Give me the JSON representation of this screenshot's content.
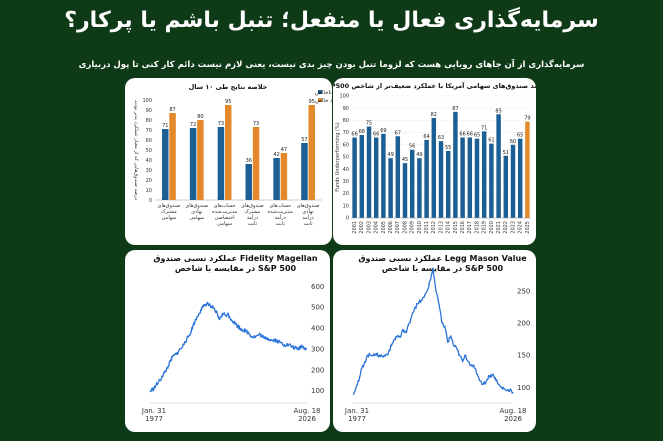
{
  "page": {
    "title": "سرمایه‌گذاری فعال یا منفعل؛ تنبل باشم یا پرکار؟",
    "subtitle": "سرمایه‌گذاری از آن جاهای رویایی هست که لزوما تنبل بودن چیز بدی نیست، یعنی لازم نیست دائم کار کنی تا پول دربیاری"
  },
  "colors": {
    "background": "#0f3a17",
    "panel": "#ffffff",
    "bar_blue": "#1b5f94",
    "bar_orange": "#e3892b",
    "line_blue": "#2a74d8"
  },
  "chart_data": [
    {
      "type": "bar",
      "title": "خلاصه نتایج طی ۱۰ سال",
      "ylabel": "درصد صندوق‌هایی که از معیار عملکرد بدتر بودند",
      "ylim": [
        0,
        100
      ],
      "yticks": [
        0,
        10,
        20,
        30,
        40,
        50,
        60,
        70,
        80,
        90,
        100
      ],
      "legend_position": "top-right",
      "categories": [
        "صندوق‌های مشترک سهامی",
        "صندوق‌های نهادی سهامی",
        "حساب‌های مدیریت‌شده اختصاصی سهامی",
        "صندوق‌های مشترک درآمد ثابت",
        "حساب‌های مدیریت‌شده درآمد ثابت",
        "صندوق‌های نهادی درآمد ثابت"
      ],
      "series": [
        {
          "name": "کارمزد ناخالص",
          "values": [
            71,
            72,
            73,
            36,
            42,
            57
          ]
        },
        {
          "name": "کارمزد خالص",
          "values": [
            87,
            80,
            95,
            73,
            47,
            95
          ]
        }
      ]
    },
    {
      "type": "bar",
      "title": "درصد صندوق‌های سهامی آمریکا با عملکرد ضعیف‌تر از شاخص S&P500",
      "ylabel": "Funds Underperforming (%)",
      "ylim": [
        0,
        100
      ],
      "yticks": [
        0,
        10,
        20,
        30,
        40,
        50,
        60,
        70,
        80,
        90,
        100
      ],
      "x": [
        "2001",
        "2002",
        "2003",
        "2004",
        "2005",
        "2006",
        "2007",
        "2008",
        "2009",
        "2010",
        "2011",
        "2012",
        "2013",
        "2014",
        "2015",
        "2016",
        "2017",
        "2018",
        "2019",
        "2020",
        "2021",
        "2022",
        "2023",
        "2024",
        "2025"
      ],
      "values": [
        66,
        68,
        75,
        66,
        69,
        49,
        67,
        45,
        56,
        49,
        64,
        82,
        63,
        55,
        87,
        66,
        66,
        65,
        71,
        61,
        85,
        51,
        60,
        65,
        79
      ],
      "highlight_index": 24
    },
    {
      "type": "line",
      "title": "عملکرد نسبی صندوق Fidelity Magellan",
      "subtitle": "در مقایسه با شاخص S&P 500",
      "x_start": "Jan. 31 1977",
      "x_end": "Aug. 18 2026",
      "yticks": [
        100,
        200,
        300,
        400,
        500,
        600
      ],
      "ylim": [
        60,
        640
      ],
      "series": [
        {
          "values": [
            95,
            104,
            112,
            125,
            140,
            150,
            170,
            185,
            200,
            220,
            240,
            260,
            270,
            275,
            290,
            300,
            310,
            335,
            345,
            360,
            380,
            410,
            430,
            450,
            470,
            490,
            500,
            510,
            520,
            510,
            500,
            495,
            480,
            470,
            440,
            460,
            470,
            460,
            470,
            455,
            440,
            430,
            420,
            410,
            400,
            395,
            390,
            385,
            380,
            370,
            360,
            358,
            360,
            365,
            370,
            360,
            350,
            355,
            350,
            345,
            340,
            345,
            340,
            335,
            330,
            325,
            320,
            320,
            318,
            315,
            310,
            305,
            300,
            300,
            315,
            310,
            305,
            300
          ]
        }
      ]
    },
    {
      "type": "line",
      "title": "عملکرد نسبی صندوق Legg Mason Value",
      "subtitle": "در مقایسه با شاخص S&P 500",
      "x_start": "Jan. 31 1977",
      "x_end": "Aug. 18 2026",
      "yticks": [
        100,
        150,
        200,
        250
      ],
      "ylim": [
        82,
        270
      ],
      "series": [
        {
          "values": [
            90,
            100,
            110,
            130,
            140,
            150,
            150,
            152,
            150,
            150,
            148,
            150,
            155,
            165,
            175,
            180,
            178,
            190,
            185,
            200,
            215,
            225,
            230,
            235,
            240,
            250,
            265,
            285,
            250,
            230,
            200,
            195,
            170,
            180,
            165,
            160,
            150,
            140,
            150,
            140,
            135,
            130,
            120,
            110,
            105,
            110,
            118,
            120,
            115,
            105,
            100,
            98,
            95,
            97,
            93
          ]
        }
      ]
    }
  ]
}
